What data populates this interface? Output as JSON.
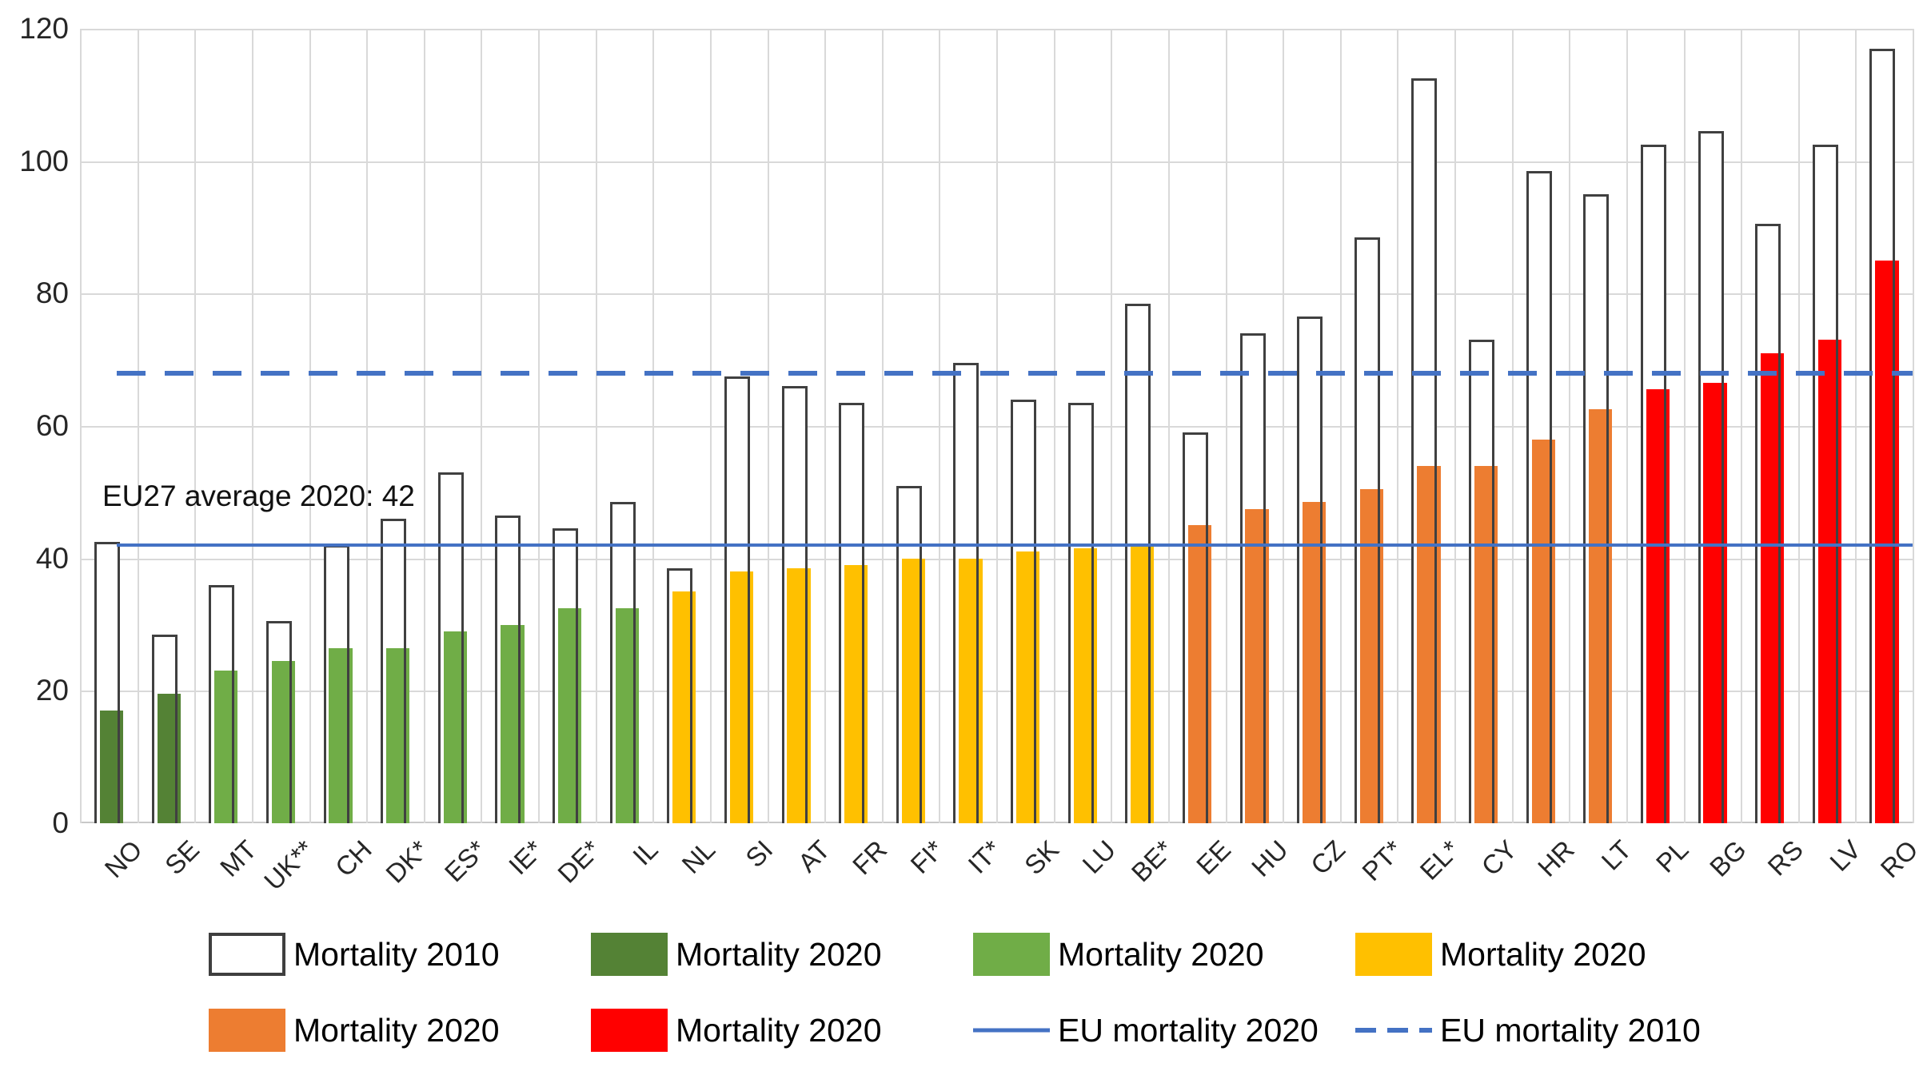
{
  "colors": {
    "dark_green": "#548235",
    "green": "#70ad47",
    "yellow": "#ffc000",
    "orange": "#ed7d31",
    "red": "#ff0000",
    "blue": "#4472c4",
    "bar_outline": "#404040",
    "gridline": "#d9d9d9",
    "axis_text": "#262626"
  },
  "chart_data": {
    "type": "bar",
    "title": "",
    "annotation": "EU27 average 2020: 42",
    "ylim": [
      0,
      120
    ],
    "yticks": [
      0,
      20,
      40,
      60,
      80,
      100,
      120
    ],
    "grid": true,
    "legend_position": "bottom",
    "categories": [
      "NO",
      "SE",
      "MT",
      "UK**",
      "CH",
      "DK*",
      "ES*",
      "IE*",
      "DE*",
      "IL",
      "NL",
      "SI",
      "AT",
      "FR",
      "FI*",
      "IT*",
      "SK",
      "LU",
      "BE*",
      "EE",
      "HU",
      "CZ",
      "PT*",
      "EL*",
      "CY",
      "HR",
      "LT",
      "PL",
      "BG",
      "RS",
      "LV",
      "RO"
    ],
    "series": [
      {
        "name": "Mortality 2010",
        "style": "outline",
        "values": [
          42.5,
          28.5,
          36,
          30.5,
          42,
          46,
          53,
          46.5,
          44.5,
          48.5,
          38.5,
          67.5,
          66,
          63.5,
          51,
          69.5,
          64,
          63.5,
          78.5,
          59,
          74,
          76.5,
          88.5,
          112.5,
          73,
          98.5,
          95,
          102.5,
          104.5,
          90.5,
          102.5,
          117
        ]
      },
      {
        "name": "Mortality 2020",
        "style": "filled",
        "values": [
          17,
          19.5,
          23,
          24.5,
          26.5,
          26.5,
          29,
          30,
          32.5,
          32.5,
          35,
          38,
          38.5,
          39,
          40,
          40,
          41,
          41.5,
          42,
          45,
          47.5,
          48.5,
          50.5,
          54,
          54,
          58,
          62.5,
          65.5,
          66.5,
          71,
          73,
          85
        ],
        "color_groups": [
          "dark_green",
          "dark_green",
          "green",
          "green",
          "green",
          "green",
          "green",
          "green",
          "green",
          "green",
          "yellow",
          "yellow",
          "yellow",
          "yellow",
          "yellow",
          "yellow",
          "yellow",
          "yellow",
          "yellow",
          "orange",
          "orange",
          "orange",
          "orange",
          "orange",
          "orange",
          "orange",
          "orange",
          "red",
          "red",
          "red",
          "red",
          "red"
        ]
      }
    ],
    "reference_lines": [
      {
        "name": "EU mortality 2020",
        "value": 42,
        "style": "solid",
        "color": "#4472c4"
      },
      {
        "name": "EU mortality 2010",
        "value": 68,
        "style": "dashed",
        "color": "#4472c4"
      }
    ]
  },
  "legend": {
    "rows": [
      [
        {
          "type": "outline-box",
          "color": "#ffffff",
          "label": "Mortality 2010"
        },
        {
          "type": "box",
          "color": "#548235",
          "label": "Mortality 2020"
        },
        {
          "type": "box",
          "color": "#70ad47",
          "label": "Mortality 2020"
        },
        {
          "type": "box",
          "color": "#ffc000",
          "label": "Mortality 2020"
        }
      ],
      [
        {
          "type": "box",
          "color": "#ed7d31",
          "label": "Mortality 2020"
        },
        {
          "type": "box",
          "color": "#ff0000",
          "label": "Mortality 2020"
        },
        {
          "type": "line-solid",
          "color": "#4472c4",
          "label": "EU mortality 2020"
        },
        {
          "type": "line-dashed",
          "color": "#4472c4",
          "label": "EU mortality 2010"
        }
      ]
    ]
  }
}
